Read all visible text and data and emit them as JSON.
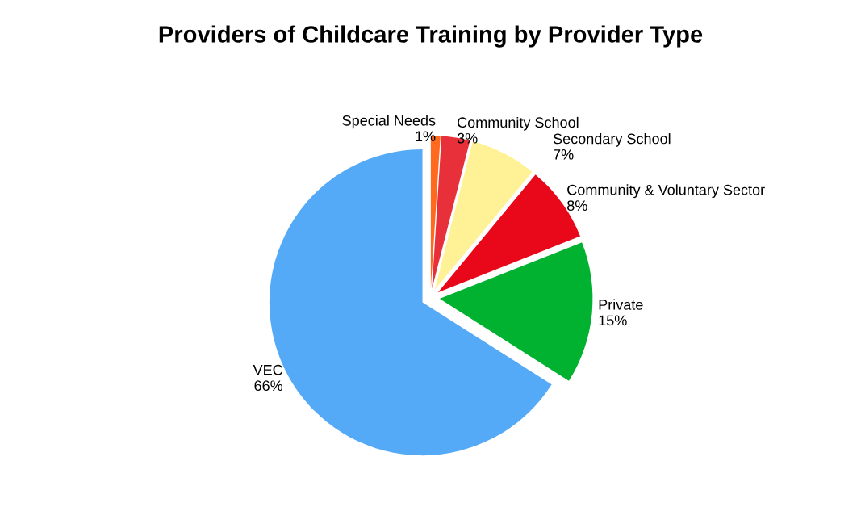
{
  "chart_data": {
    "type": "pie",
    "title": "Providers of Childcare Training by Provider Type",
    "categories": [
      "Special Needs",
      "Community School",
      "Secondary School",
      "Community & Voluntary Sector",
      "Private",
      "VEC"
    ],
    "values": [
      1,
      3,
      7,
      8,
      15,
      66
    ],
    "value_labels": [
      "1%",
      "3%",
      "7%",
      "8%",
      "15%",
      "66%"
    ],
    "colors": [
      "#ff6a1e",
      "#e8303a",
      "#fff296",
      "#e8081a",
      "#00b22f",
      "#55aaf8"
    ]
  }
}
